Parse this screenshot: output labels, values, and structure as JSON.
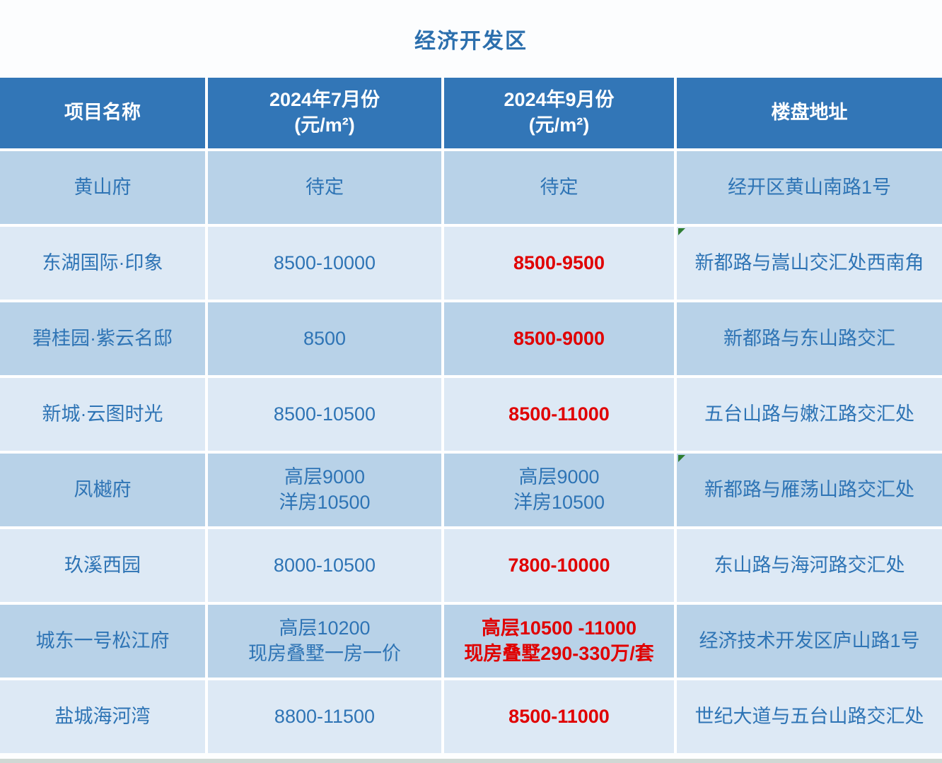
{
  "title": "经济开发区",
  "table": {
    "headers": {
      "name": "项目名称",
      "july_line1": "2024年7月份",
      "july_line2": "(元/m²)",
      "september_line1": "2024年9月份",
      "september_line2": "(元/m²)",
      "address": "楼盘地址"
    },
    "rows": [
      {
        "name": "黄山府",
        "july": [
          "待定"
        ],
        "september": [
          "待定"
        ],
        "address": "经开区黄山南路1号"
      },
      {
        "name": "东湖国际·印象",
        "july": [
          "8500-10000"
        ],
        "september": [
          "8500-9500"
        ],
        "address": "新都路与嵩山交汇处西南角"
      },
      {
        "name": "碧桂园·紫云名邸",
        "july": [
          "8500"
        ],
        "september": [
          "8500-9000"
        ],
        "address": "新都路与东山路交汇"
      },
      {
        "name": "新城·云图时光",
        "july": [
          "8500-10500"
        ],
        "september": [
          "8500-11000"
        ],
        "address": "五台山路与嫩江路交汇处"
      },
      {
        "name": "凤樾府",
        "july": [
          "高层9000",
          "洋房10500"
        ],
        "september": [
          "高层9000",
          "洋房10500"
        ],
        "address": "新都路与雁荡山路交汇处"
      },
      {
        "name": "玖溪西园",
        "july": [
          "8000-10500"
        ],
        "september": [
          "7800-10000"
        ],
        "address": "东山路与海河路交汇处"
      },
      {
        "name": "城东一号松江府",
        "july": [
          "高层10200",
          "现房叠墅一房一价"
        ],
        "september": [
          "高层10500 -11000",
          "现房叠墅290-330万/套"
        ],
        "address": "经济技术开发区庐山路1号"
      },
      {
        "name": "盐城海河湾",
        "july": [
          "8800-11500"
        ],
        "september": [
          "8500-11000"
        ],
        "address": "世纪大道与五台山路交汇处"
      }
    ]
  },
  "colors": {
    "header_bg": "#3276b7",
    "row_dark_bg": "#b8d2e8",
    "row_light_bg": "#dde9f5",
    "text_blue": "#2e74b5",
    "price_change_red": "#e00000",
    "cell_flag_green": "#2e7d32"
  }
}
